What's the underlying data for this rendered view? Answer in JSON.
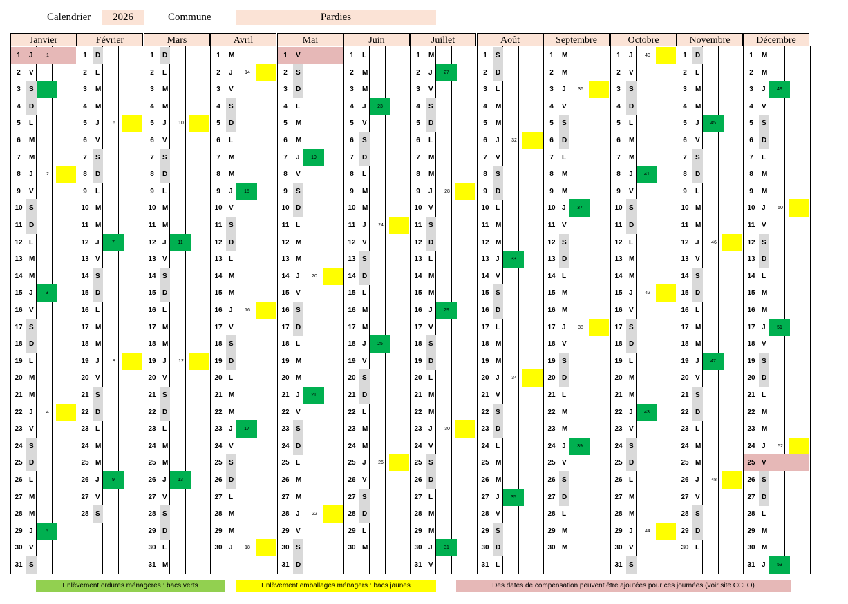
{
  "header": {
    "calendar_label": "Calendrier",
    "year": "2026",
    "commune_label": "Commune",
    "commune_value": "Pardies"
  },
  "months": [
    {
      "name": "Janvier",
      "start_weekday": 3,
      "days": 31,
      "yellow": [
        8,
        22
      ],
      "green": [
        3,
        15,
        29
      ],
      "holiday": [
        1
      ],
      "marks": {
        "1": "1",
        "8": "2",
        "15": "3",
        "22": "4",
        "29": "5"
      }
    },
    {
      "name": "Février",
      "start_weekday": 6,
      "days": 28,
      "yellow": [
        5,
        19
      ],
      "green": [
        12,
        26
      ],
      "holiday": [],
      "marks": {
        "5": "6",
        "12": "7",
        "19": "8",
        "26": "9"
      }
    },
    {
      "name": "Mars",
      "start_weekday": 6,
      "days": 31,
      "yellow": [
        5,
        19
      ],
      "green": [
        12,
        26
      ],
      "holiday": [],
      "marks": {
        "5": "10",
        "12": "11",
        "19": "12",
        "26": "13"
      }
    },
    {
      "name": "Avril",
      "start_weekday": 2,
      "days": 30,
      "yellow": [
        2,
        16,
        30
      ],
      "green": [
        9,
        23
      ],
      "holiday": [],
      "marks": {
        "2": "14",
        "9": "15",
        "16": "16",
        "23": "17",
        "30": "18"
      }
    },
    {
      "name": "Mai",
      "start_weekday": 4,
      "days": 31,
      "yellow": [
        14,
        28
      ],
      "green": [
        7,
        21
      ],
      "holiday": [
        1
      ],
      "marks": {
        "7": "19",
        "14": "20",
        "21": "21",
        "28": "22"
      }
    },
    {
      "name": "Juin",
      "start_weekday": 0,
      "days": 30,
      "yellow": [
        11,
        25
      ],
      "green": [
        4,
        18
      ],
      "holiday": [],
      "marks": {
        "4": "23",
        "11": "24",
        "18": "25",
        "25": "26"
      }
    },
    {
      "name": "Juillet",
      "start_weekday": 2,
      "days": 31,
      "yellow": [
        9,
        23
      ],
      "green": [
        2,
        16,
        30
      ],
      "holiday": [],
      "marks": {
        "2": "27",
        "9": "28",
        "16": "29",
        "23": "30",
        "30": "31"
      }
    },
    {
      "name": "Août",
      "start_weekday": 5,
      "days": 31,
      "yellow": [
        6,
        20
      ],
      "green": [
        13,
        27
      ],
      "holiday": [],
      "marks": {
        "6": "32",
        "13": "33",
        "20": "34",
        "27": "35"
      }
    },
    {
      "name": "Septembre",
      "start_weekday": 1,
      "days": 30,
      "yellow": [
        3,
        17
      ],
      "green": [
        10,
        24
      ],
      "holiday": [],
      "marks": {
        "3": "36",
        "10": "37",
        "17": "38",
        "24": "39"
      }
    },
    {
      "name": "Octobre",
      "start_weekday": 3,
      "days": 31,
      "yellow": [
        1,
        15,
        29
      ],
      "green": [
        8,
        22
      ],
      "holiday": [],
      "marks": {
        "1": "40",
        "8": "41",
        "15": "42",
        "22": "43",
        "29": "44"
      }
    },
    {
      "name": "Novembre",
      "start_weekday": 6,
      "days": 30,
      "yellow": [
        12,
        26
      ],
      "green": [
        5,
        19
      ],
      "holiday": [],
      "marks": {
        "5": "45",
        "12": "46",
        "19": "47",
        "26": "48"
      }
    },
    {
      "name": "Décembre",
      "start_weekday": 1,
      "days": 31,
      "yellow": [
        10,
        24
      ],
      "green": [
        3,
        17,
        31
      ],
      "holiday": [
        25
      ],
      "marks": {
        "3": "49",
        "10": "50",
        "17": "51",
        "24": "52",
        "31": "53"
      }
    }
  ],
  "weekday_letters": [
    "L",
    "M",
    "M",
    "J",
    "V",
    "S",
    "D"
  ],
  "legend": {
    "green": {
      "label": "Enlèvement ordures ménagères : bacs verts",
      "color": "#92d050"
    },
    "yellow": {
      "label": "Enlèvement emballages ménagers : bacs jaunes",
      "color": "#ffff00"
    },
    "pink": {
      "label": "Des dates de compensation peuvent être ajoutées pour ces journées (voir site CCLO)",
      "color": "#e6b8b7"
    }
  }
}
